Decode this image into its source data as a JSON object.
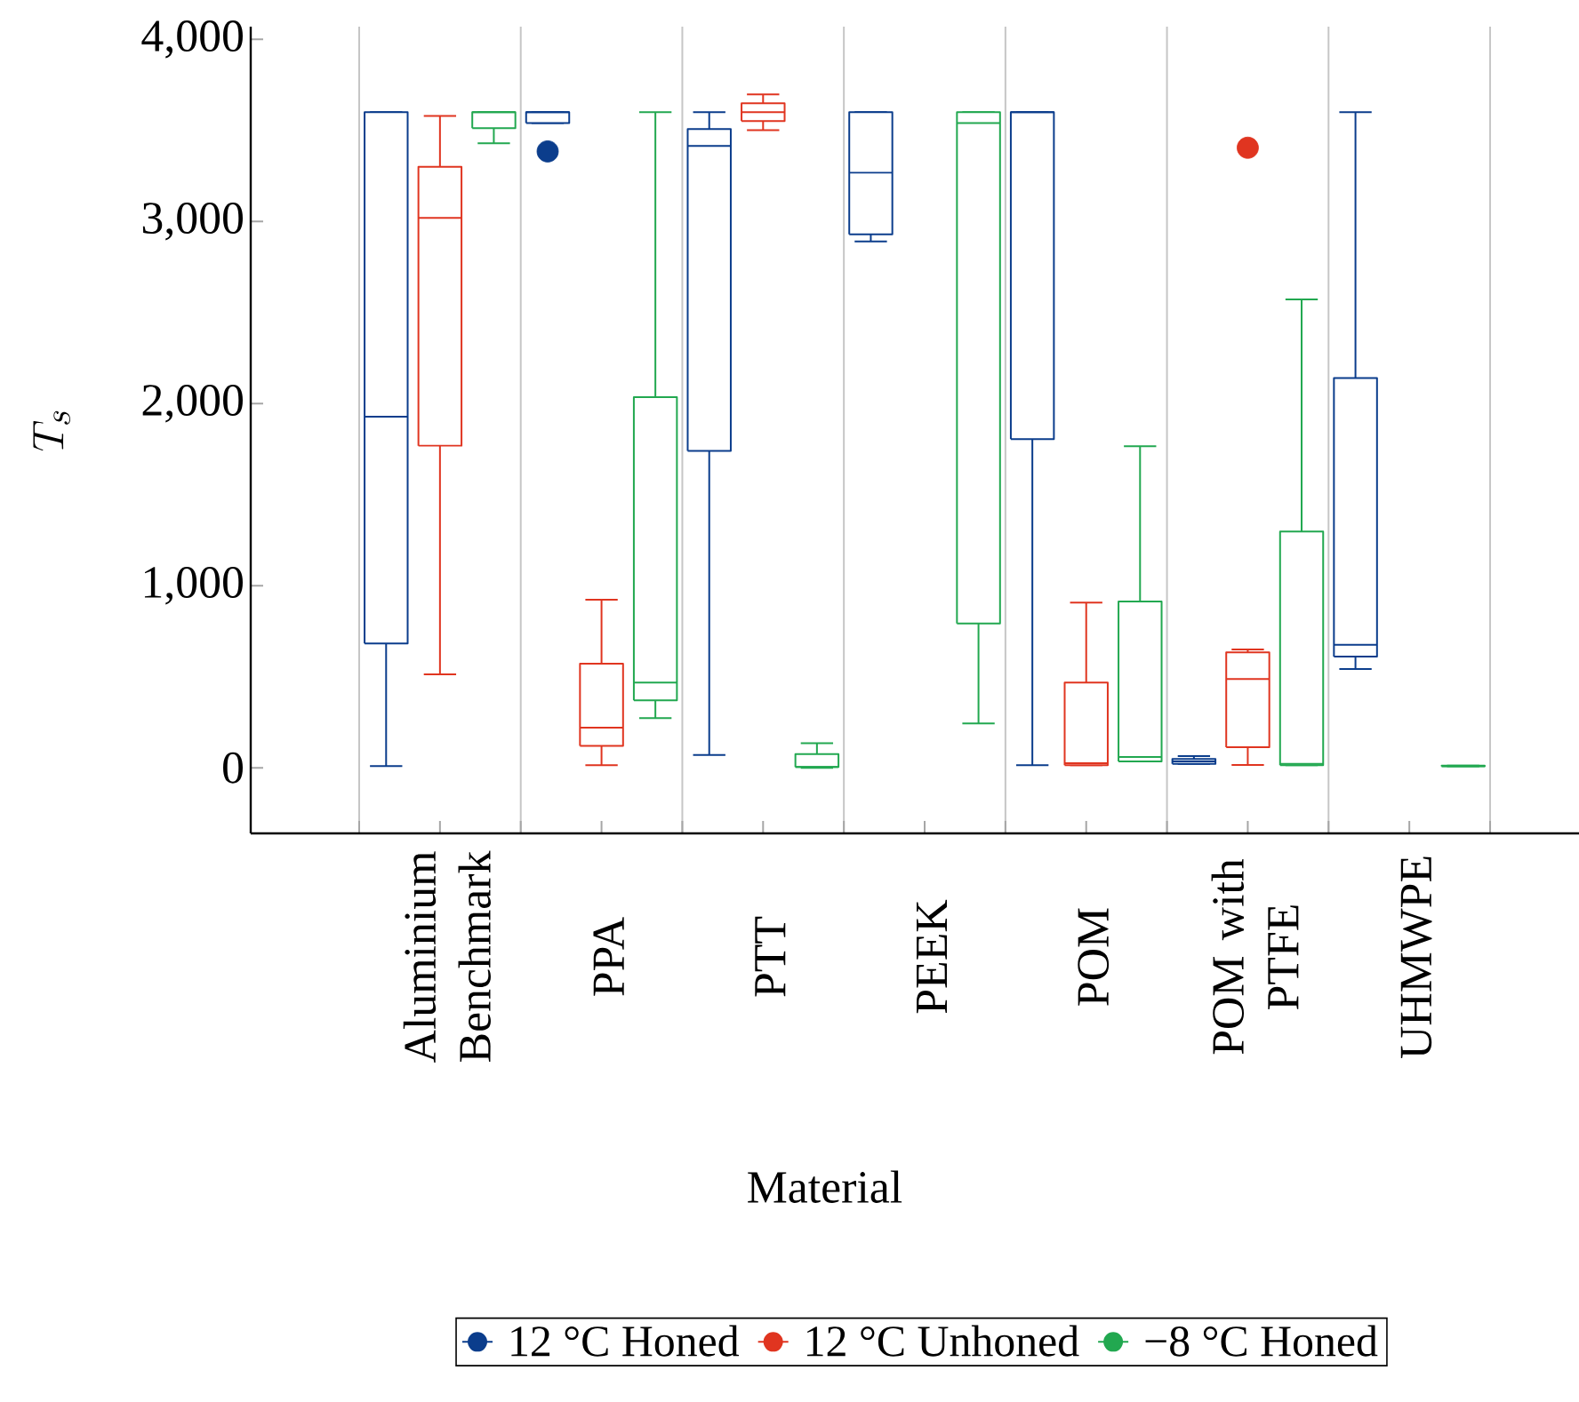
{
  "chart_data": {
    "type": "box",
    "xlabel": "Material",
    "ylabel": "T_s",
    "categories": [
      "Aluminium Benchmark",
      "PPA",
      "PTT",
      "PEEK",
      "POM",
      "POM with PTFE",
      "UHMWPE"
    ],
    "ylim": [
      -360,
      4070
    ],
    "yticks": [
      0,
      {
        "value": 1000,
        "label": "1,000"
      },
      {
        "value": 2000,
        "label": "2,000"
      },
      {
        "value": 3000,
        "label": "3,000"
      },
      {
        "value": 4000,
        "label": "4,000"
      }
    ],
    "grid": "x",
    "legend": "bottom",
    "marker": "circle",
    "line_style": "solid",
    "series": [
      {
        "name": "12 °C Honed",
        "color": "#0b3d8c",
        "boxes": [
          {
            "low": 10,
            "q1": 683,
            "median": 1928,
            "q3": 3600,
            "high": 3600
          },
          {
            "low": 3541,
            "q1": 3541,
            "median": 3600,
            "q3": 3600,
            "high": 3600,
            "outliers": [
              3385
            ]
          },
          {
            "low": 71,
            "q1": 1740,
            "median": 3415,
            "q3": 3508,
            "high": 3600
          },
          {
            "low": 2891,
            "q1": 2930,
            "median": 3268,
            "q3": 3600,
            "high": 3600
          },
          {
            "low": 15,
            "q1": 1805,
            "median": 3600,
            "q3": 3600,
            "high": 3600
          },
          {
            "low": 22,
            "q1": 22,
            "median": 35,
            "q3": 49,
            "high": 64
          },
          {
            "low": 543,
            "q1": 611,
            "median": 676,
            "q3": 2140,
            "high": 3600
          }
        ]
      },
      {
        "name": "12 °C Unhoned",
        "color": "#e03520",
        "boxes": [
          {
            "low": 513,
            "q1": 1769,
            "median": 3020,
            "q3": 3300,
            "high": 3580
          },
          {
            "low": 15,
            "q1": 120,
            "median": 221,
            "q3": 572,
            "high": 923
          },
          {
            "low": 3502,
            "q1": 3551,
            "median": 3600,
            "q3": 3649,
            "high": 3698
          },
          null,
          {
            "low": 15,
            "q1": 15,
            "median": 25,
            "q3": 468,
            "high": 907
          },
          {
            "low": 16,
            "q1": 113,
            "median": 488,
            "q3": 634,
            "high": 650,
            "outliers": [
              3405
            ]
          },
          null
        ]
      },
      {
        "name": "−8 °C Honed",
        "color": "#22a850",
        "boxes": [
          {
            "low": 3430,
            "q1": 3512,
            "median": 3600,
            "q3": 3600,
            "high": 3600
          },
          {
            "low": 273,
            "q1": 371,
            "median": 468,
            "q3": 2035,
            "high": 3600
          },
          {
            "low": 0,
            "q1": 5,
            "median": 5,
            "q3": 75,
            "high": 135
          },
          {
            "low": 244,
            "q1": 793,
            "median": 3541,
            "q3": 3600,
            "high": 3600
          },
          {
            "low": 35,
            "q1": 35,
            "median": 60,
            "q3": 913,
            "high": 1766
          },
          {
            "low": 15,
            "q1": 15,
            "median": 22,
            "q3": 1298,
            "high": 2572
          },
          {
            "low": 8,
            "q1": 8,
            "median": 10,
            "q3": 12,
            "high": 12
          }
        ]
      }
    ]
  }
}
